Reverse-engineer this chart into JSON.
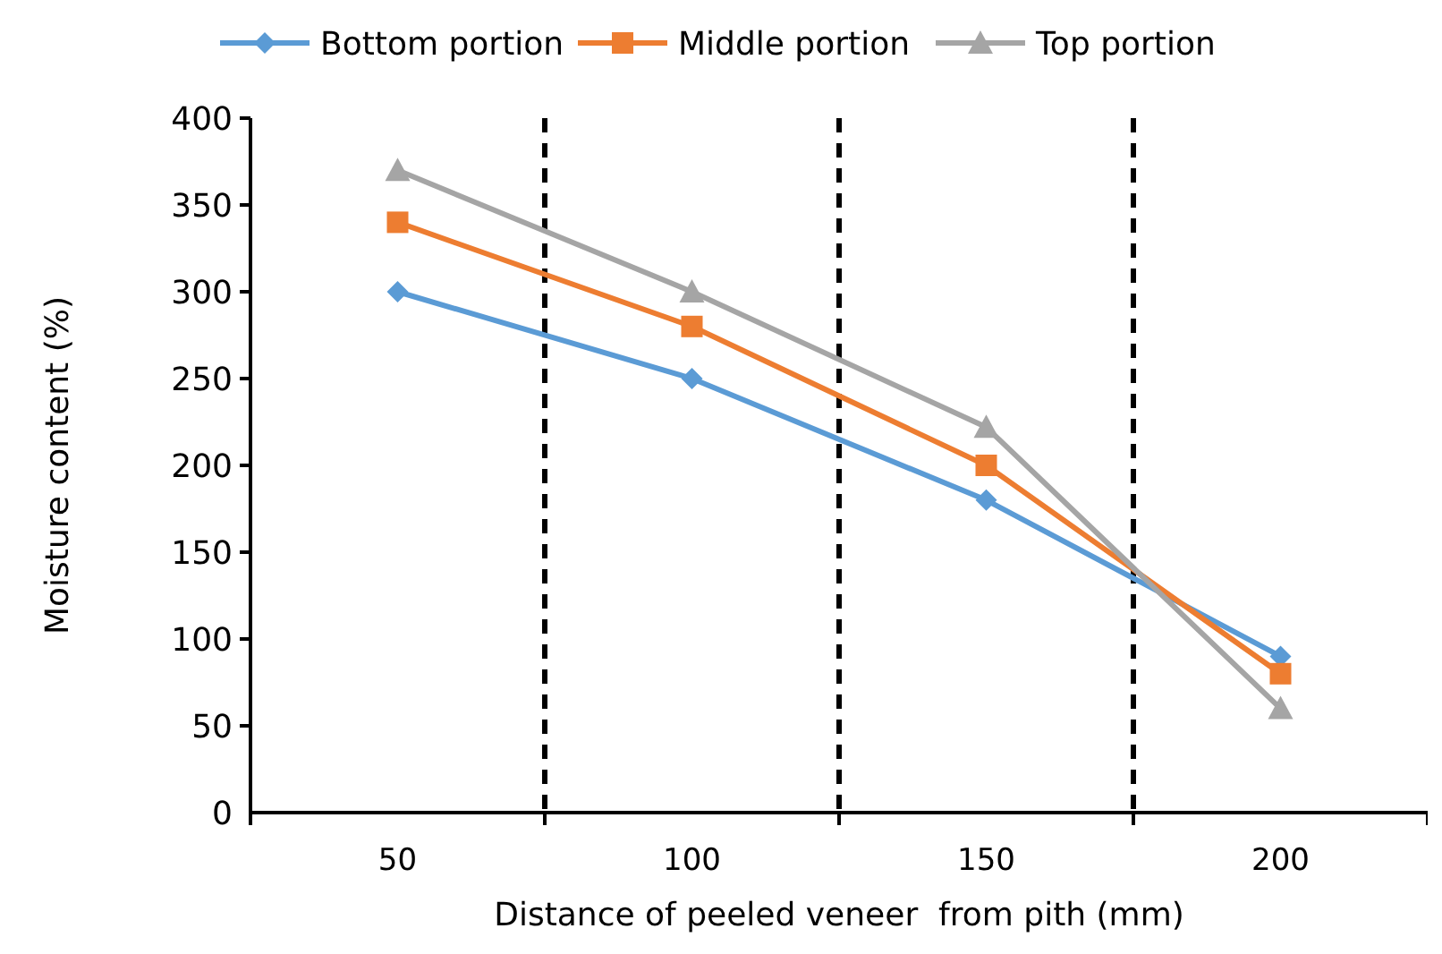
{
  "chart_data": {
    "type": "line",
    "xlabel": "Distance of peeled veneer  from pith (mm)",
    "ylabel": "Moisture content (%)",
    "x": [
      50,
      100,
      150,
      200
    ],
    "xlim": [
      25,
      225
    ],
    "xticks": [
      50,
      100,
      150,
      200
    ],
    "ylim": [
      0,
      400
    ],
    "yticks": [
      0,
      50,
      100,
      150,
      200,
      250,
      300,
      350,
      400
    ],
    "series": [
      {
        "name": "Bottom portion",
        "color": "#5b9bd5",
        "values": [
          300,
          250,
          180,
          90
        ],
        "marker": "diamond"
      },
      {
        "name": "Middle portion",
        "color": "#ed7d31",
        "values": [
          340,
          280,
          200,
          80
        ],
        "marker": "square"
      },
      {
        "name": "Top portion",
        "color": "#a5a5a5",
        "values": [
          370,
          300,
          222,
          60
        ],
        "marker": "triangle"
      }
    ],
    "ref_lines": [
      {
        "axis": "x",
        "value": 75,
        "color": "#000000",
        "line_style": "dashed"
      },
      {
        "axis": "x",
        "value": 125,
        "color": "#000000",
        "line_style": "dashed"
      },
      {
        "axis": "x",
        "value": 175,
        "color": "#000000",
        "line_style": "dashed"
      }
    ],
    "legend": "top",
    "grid": false,
    "line_style": "solid"
  }
}
